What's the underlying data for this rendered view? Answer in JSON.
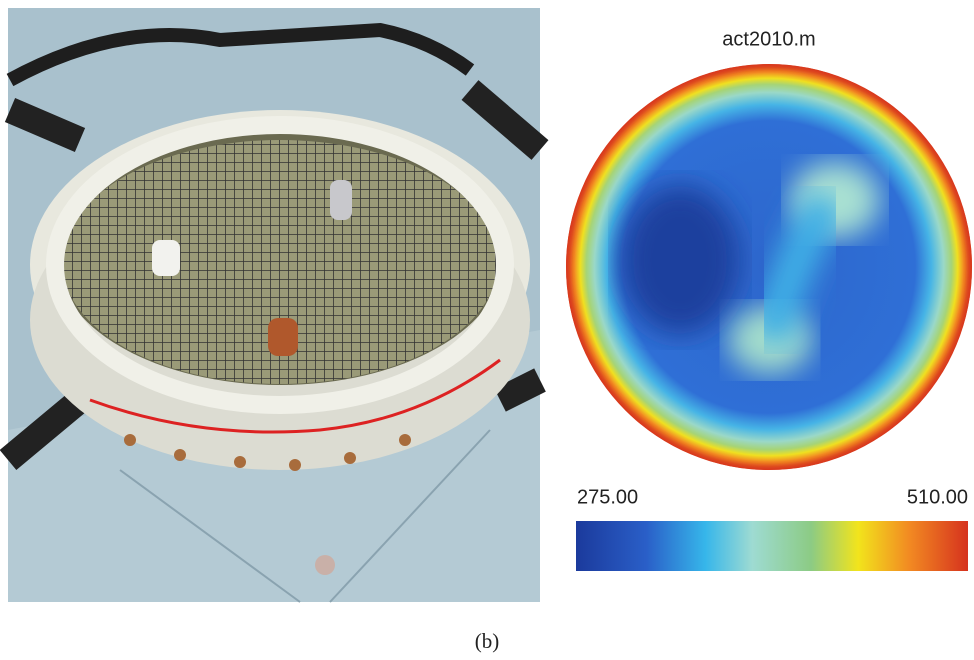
{
  "heatmap": {
    "title": "act2010.m",
    "colorbar": {
      "min_label": "275.00",
      "max_label": "510.00"
    }
  },
  "caption": "(b)"
}
